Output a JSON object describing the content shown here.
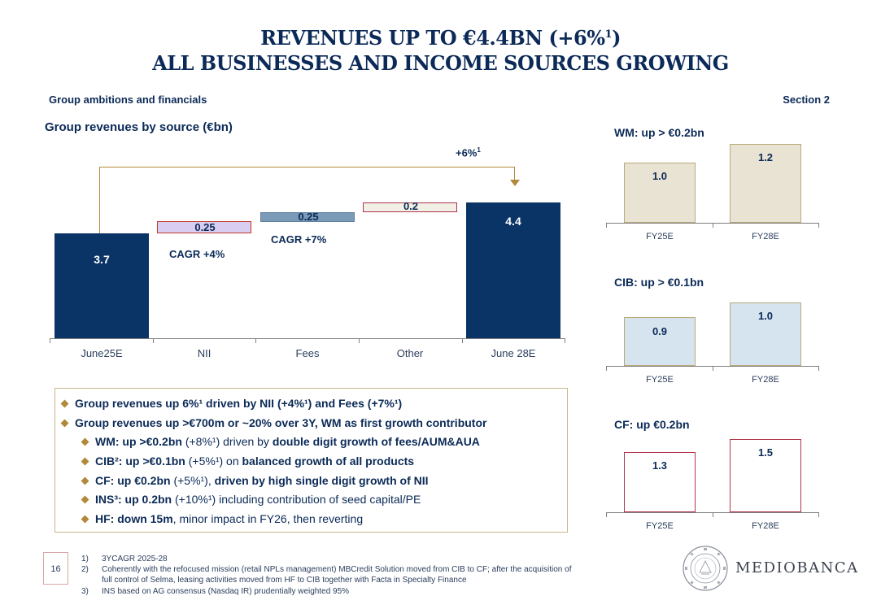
{
  "title": {
    "line1": "REVENUES UP TO €4.4BN (+6%",
    "line1_sup": "1",
    "line1_end": ")",
    "line2": "ALL BUSINESSES AND INCOME SOURCES GROWING"
  },
  "header": {
    "left": "Group ambitions and financials",
    "right": "Section 2"
  },
  "waterfall": {
    "subtitle": "Group revenues by source (€bn)",
    "growth_label": "+6%",
    "growth_sup": "1",
    "colors": {
      "dark": "#0b3466",
      "nii": "#d9cdf2",
      "fees": "#7a9ab7",
      "other": "#f2efe6"
    },
    "bars": [
      {
        "category": "June25E",
        "value_label": "3.7",
        "type": "total"
      },
      {
        "category": "NII",
        "value_label": "0.25",
        "type": "increment",
        "note": "CAGR +4%"
      },
      {
        "category": "Fees",
        "value_label": "0.25",
        "type": "increment",
        "note": "CAGR +7%"
      },
      {
        "category": "Other",
        "value_label": "0.2",
        "type": "increment",
        "note": ""
      },
      {
        "category": "June 28E",
        "value_label": "4.4",
        "type": "total"
      }
    ]
  },
  "mini_charts": [
    {
      "title": "WM: up > €0.2bn",
      "categories": [
        "FY25E",
        "FY28E"
      ],
      "labels": [
        "1.0",
        "1.2"
      ],
      "values": [
        1.0,
        1.2
      ],
      "fill": "#e9e3d3",
      "border": "#b9a97a"
    },
    {
      "title": "CIB: up > €0.1bn",
      "categories": [
        "FY25E",
        "FY28E"
      ],
      "labels": [
        "0.9",
        "1.0"
      ],
      "values": [
        0.9,
        1.0
      ],
      "fill": "#d6e4ef",
      "border": "#b9a97a"
    },
    {
      "title": "CF: up €0.2bn",
      "categories": [
        "FY25E",
        "FY28E"
      ],
      "labels": [
        "1.3",
        "1.5"
      ],
      "values": [
        1.3,
        1.5
      ],
      "fill": "#ffffff",
      "border": "#b0344a"
    }
  ],
  "bullets": [
    {
      "level": 1,
      "bold": "Group revenues up 6%¹ driven by NII (+4%¹) and Fees (+7%¹)",
      "rest": ""
    },
    {
      "level": 1,
      "bold": "Group revenues up >€700m or ~20% over 3Y, WM as first growth contributor",
      "rest": ""
    },
    {
      "level": 2,
      "bold": "WM: up >€0.2bn",
      "rest": " (+8%¹) driven by ",
      "bold2": "double digit growth of fees/AUM&AUA",
      "rest2": ""
    },
    {
      "level": 2,
      "bold": "CIB²: up >€0.1bn",
      "rest": " (+5%¹) on ",
      "bold2": "balanced growth of all products",
      "rest2": ""
    },
    {
      "level": 2,
      "bold": "CF: up €0.2bn",
      "rest": " (+5%¹), ",
      "bold2": "driven by high single digit growth of NII",
      "rest2": ""
    },
    {
      "level": 2,
      "bold": "INS³: up 0.2bn",
      "rest": " (+10%¹) including contribution of seed capital/PE",
      "bold2": "",
      "rest2": ""
    },
    {
      "level": 2,
      "bold": "HF: down 15m",
      "rest": ", minor impact in FY26, then reverting",
      "bold2": "",
      "rest2": ""
    }
  ],
  "footnotes": [
    {
      "n": "1)",
      "text": "3YCAGR 2025-28"
    },
    {
      "n": "2)",
      "text": "Coherently with the refocused mission (retail NPLs management) MBCredit Solution moved from CIB to CF; after the acquisition of"
    },
    {
      "n": "",
      "text": "full control of Selma, leasing activities moved from HF to CIB together with Facta in Specialty Finance"
    },
    {
      "n": "3)",
      "text": "INS based on AG consensus (Nasdaq IR) prudentially weighted 95%"
    }
  ],
  "page_number": "16",
  "brand": {
    "name": "MEDIOBANCA",
    "seal_text": "MEDIOBANCA · BANCA DI CREDITO FINANZIARIO"
  }
}
